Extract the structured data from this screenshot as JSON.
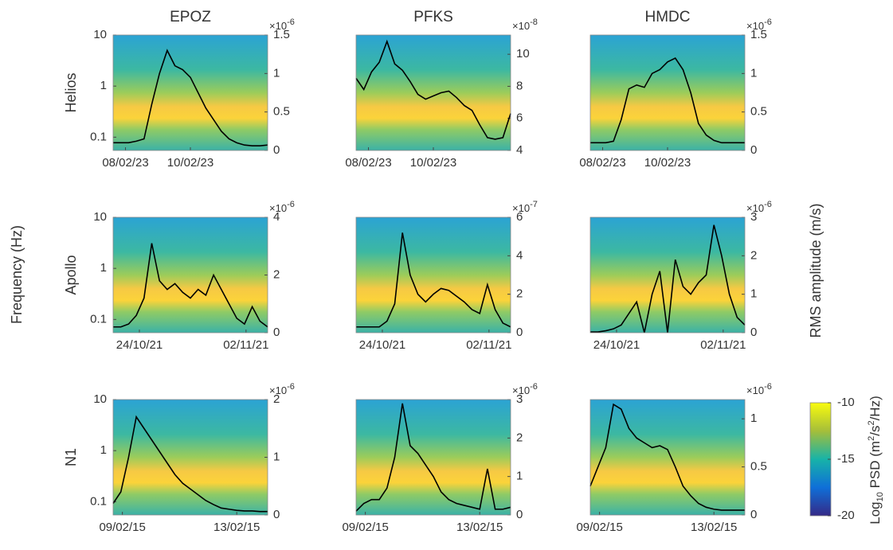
{
  "figure": {
    "columns": [
      "EPOZ",
      "PFKS",
      "HMDC"
    ],
    "rows": [
      "Helios",
      "Apollo",
      "N1"
    ],
    "ylabel": "Frequency (Hz)",
    "y2label": "RMS amplitude (m/s)",
    "colorbar": {
      "label_parts": [
        "Log",
        "10",
        " PSD (m",
        "2",
        "/s",
        "2",
        "/Hz)"
      ],
      "lim": [
        -20,
        -10
      ],
      "ticks": [
        -10,
        -15,
        -20
      ]
    }
  },
  "chart_data": [
    {
      "type": "line",
      "yscale": "log",
      "ylim": [
        0.055,
        10
      ],
      "yticks": [
        0.1,
        1,
        10
      ],
      "xlim": [
        0,
        20
      ],
      "xticks": [
        {
          "value": 1.6,
          "label": "08/02/23"
        },
        {
          "value": 10,
          "label": "10/02/23"
        }
      ],
      "y2lim": [
        0,
        1.5
      ],
      "y2ticks": [
        0,
        0.5,
        1,
        1.5
      ],
      "y2_multiplier": {
        "base": "×10",
        "exponent": "-6"
      },
      "series": [
        {
          "axis": "y2",
          "color": "#000000",
          "values": [
            0.1,
            0.1,
            0.1,
            0.12,
            0.15,
            0.6,
            1.0,
            1.3,
            1.1,
            1.05,
            0.95,
            0.75,
            0.55,
            0.4,
            0.25,
            0.15,
            0.1,
            0.07,
            0.06,
            0.06,
            0.07
          ]
        }
      ]
    },
    {
      "type": "line",
      "xlim": [
        0,
        20
      ],
      "xticks": [
        {
          "value": 1.6,
          "label": "08/02/23"
        },
        {
          "value": 10,
          "label": "10/02/23"
        }
      ],
      "y2lim": [
        4,
        11.2
      ],
      "y2ticks": [
        4,
        6,
        8,
        10
      ],
      "y2_multiplier": {
        "base": "×10",
        "exponent": "-8"
      },
      "series": [
        {
          "axis": "y2",
          "color": "#000000",
          "values": [
            8.5,
            7.8,
            8.9,
            9.5,
            10.8,
            9.4,
            9.0,
            8.3,
            7.5,
            7.2,
            7.4,
            7.6,
            7.7,
            7.3,
            6.8,
            6.5,
            5.6,
            4.8,
            4.7,
            4.8,
            6.3
          ]
        }
      ]
    },
    {
      "type": "line",
      "xlim": [
        0,
        20
      ],
      "xticks": [
        {
          "value": 1.6,
          "label": "08/02/23"
        },
        {
          "value": 10,
          "label": "10/02/23"
        }
      ],
      "y2lim": [
        0,
        1.5
      ],
      "y2ticks": [
        0,
        0.5,
        1,
        1.5
      ],
      "y2_multiplier": {
        "base": "×10",
        "exponent": "-6"
      },
      "series": [
        {
          "axis": "y2",
          "color": "#000000",
          "values": [
            0.1,
            0.1,
            0.1,
            0.12,
            0.4,
            0.8,
            0.85,
            0.82,
            1.0,
            1.05,
            1.15,
            1.2,
            1.05,
            0.75,
            0.35,
            0.2,
            0.13,
            0.1,
            0.1,
            0.1,
            0.1
          ]
        }
      ]
    },
    {
      "type": "line",
      "yscale": "log",
      "ylim": [
        0.055,
        10
      ],
      "yticks": [
        0.1,
        1,
        10
      ],
      "xlim": [
        0,
        20
      ],
      "xticks": [
        {
          "value": 3.4,
          "label": "24/10/21"
        },
        {
          "value": 17.2,
          "label": "02/11/21"
        }
      ],
      "y2lim": [
        0,
        4
      ],
      "y2ticks": [
        0,
        2,
        4
      ],
      "y2_multiplier": {
        "base": "×10",
        "exponent": "-6"
      },
      "series": [
        {
          "axis": "y2",
          "color": "#000000",
          "values": [
            0.2,
            0.2,
            0.3,
            0.6,
            1.2,
            3.1,
            1.8,
            1.5,
            1.7,
            1.4,
            1.2,
            1.5,
            1.3,
            2.0,
            1.5,
            1.0,
            0.5,
            0.3,
            0.9,
            0.4,
            0.2
          ]
        }
      ]
    },
    {
      "type": "line",
      "xlim": [
        0,
        20
      ],
      "xticks": [
        {
          "value": 3.4,
          "label": "24/10/21"
        },
        {
          "value": 17.2,
          "label": "02/11/21"
        }
      ],
      "y2lim": [
        0,
        6
      ],
      "y2ticks": [
        0,
        2,
        4,
        6
      ],
      "y2_multiplier": {
        "base": "×10",
        "exponent": "-7"
      },
      "series": [
        {
          "axis": "y2",
          "color": "#000000",
          "values": [
            0.3,
            0.3,
            0.3,
            0.3,
            0.6,
            1.5,
            5.2,
            3.0,
            2.0,
            1.6,
            2.0,
            2.3,
            2.2,
            1.9,
            1.6,
            1.2,
            1.0,
            2.5,
            1.2,
            0.5,
            0.3
          ]
        }
      ]
    },
    {
      "type": "line",
      "xlim": [
        0,
        20
      ],
      "xticks": [
        {
          "value": 3.4,
          "label": "24/10/21"
        },
        {
          "value": 17.2,
          "label": "02/11/21"
        }
      ],
      "y2lim": [
        0,
        3
      ],
      "y2ticks": [
        0,
        1,
        2,
        3
      ],
      "y2_multiplier": {
        "base": "×10",
        "exponent": "-6"
      },
      "series": [
        {
          "axis": "y2",
          "color": "#000000",
          "values": [
            0.02,
            0.02,
            0.05,
            0.1,
            0.2,
            0.5,
            0.8,
            0,
            1.0,
            1.6,
            0,
            1.9,
            1.2,
            1.0,
            1.3,
            1.5,
            2.8,
            2.0,
            1.0,
            0.4,
            0.2
          ]
        }
      ]
    },
    {
      "type": "line",
      "yscale": "log",
      "ylim": [
        0.055,
        10
      ],
      "yticks": [
        0.1,
        1,
        10
      ],
      "xlim": [
        0,
        20
      ],
      "xticks": [
        {
          "value": 1.2,
          "label": "09/02/15"
        },
        {
          "value": 16,
          "label": "13/02/15"
        }
      ],
      "y2lim": [
        0,
        2
      ],
      "y2ticks": [
        0,
        1,
        2
      ],
      "y2_multiplier": {
        "base": "×10",
        "exponent": "-6"
      },
      "series": [
        {
          "axis": "y2",
          "color": "#000000",
          "values": [
            0.2,
            0.4,
            1.0,
            1.7,
            1.5,
            1.3,
            1.1,
            0.9,
            0.7,
            0.55,
            0.45,
            0.35,
            0.25,
            0.18,
            0.12,
            0.1,
            0.08,
            0.07,
            0.07,
            0.06,
            0.06
          ]
        }
      ]
    },
    {
      "type": "line",
      "xlim": [
        0,
        20
      ],
      "xticks": [
        {
          "value": 1.2,
          "label": "09/02/15"
        },
        {
          "value": 16,
          "label": "13/02/15"
        }
      ],
      "y2lim": [
        0,
        3
      ],
      "y2ticks": [
        0,
        1,
        2,
        3
      ],
      "y2_multiplier": {
        "base": "×10",
        "exponent": "-6"
      },
      "series": [
        {
          "axis": "y2",
          "color": "#000000",
          "values": [
            0.1,
            0.3,
            0.4,
            0.4,
            0.7,
            1.5,
            2.9,
            1.8,
            1.6,
            1.3,
            1.0,
            0.6,
            0.4,
            0.3,
            0.25,
            0.2,
            0.15,
            1.2,
            0.15,
            0.15,
            0.2
          ]
        }
      ]
    },
    {
      "type": "line",
      "xlim": [
        0,
        20
      ],
      "xticks": [
        {
          "value": 1.2,
          "label": "09/02/15"
        },
        {
          "value": 16,
          "label": "13/02/15"
        }
      ],
      "y2lim": [
        0,
        1.2
      ],
      "y2ticks": [
        0,
        0.5,
        1
      ],
      "y2_multiplier": {
        "base": "×10",
        "exponent": "-6"
      },
      "series": [
        {
          "axis": "y2",
          "color": "#000000",
          "values": [
            0.3,
            0.5,
            0.7,
            1.15,
            1.1,
            0.9,
            0.8,
            0.75,
            0.7,
            0.72,
            0.68,
            0.5,
            0.3,
            0.2,
            0.12,
            0.08,
            0.06,
            0.05,
            0.05,
            0.05,
            0.05
          ]
        }
      ]
    }
  ]
}
